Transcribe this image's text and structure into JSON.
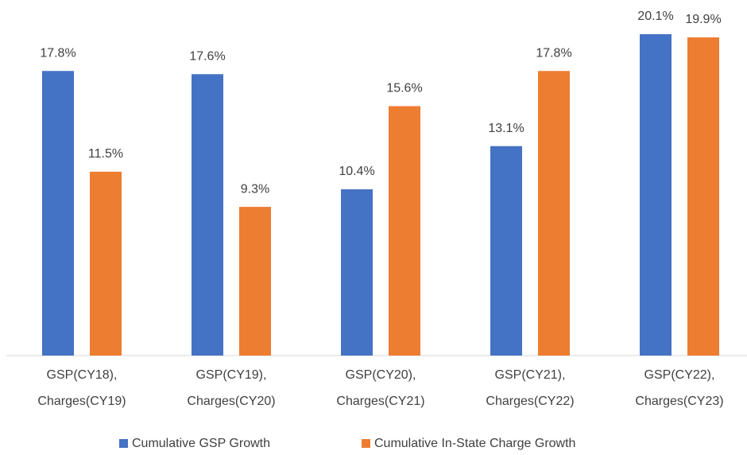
{
  "chart_data": {
    "type": "bar",
    "categories": [
      [
        "GSP(CY18),",
        "Charges(CY19)"
      ],
      [
        "GSP(CY19),",
        "Charges(CY20)"
      ],
      [
        "GSP(CY20),",
        "Charges(CY21)"
      ],
      [
        "GSP(CY21),",
        "Charges(CY22)"
      ],
      [
        "GSP(CY22),",
        "Charges(CY23)"
      ]
    ],
    "series": [
      {
        "name": "Cumulative GSP Growth",
        "color": "#4472c4",
        "values": [
          17.8,
          17.6,
          10.4,
          13.1,
          20.1
        ],
        "value_labels": [
          "17.8%",
          "17.6%",
          "10.4%",
          "13.1%",
          "20.1%"
        ]
      },
      {
        "name": "Cumulative In-State Charge Growth",
        "color": "#ed7d31",
        "values": [
          11.5,
          9.3,
          15.6,
          17.8,
          19.9
        ],
        "value_labels": [
          "11.5%",
          "9.3%",
          "15.6%",
          "17.8%",
          "19.9%"
        ]
      }
    ],
    "legend": "bottom"
  }
}
